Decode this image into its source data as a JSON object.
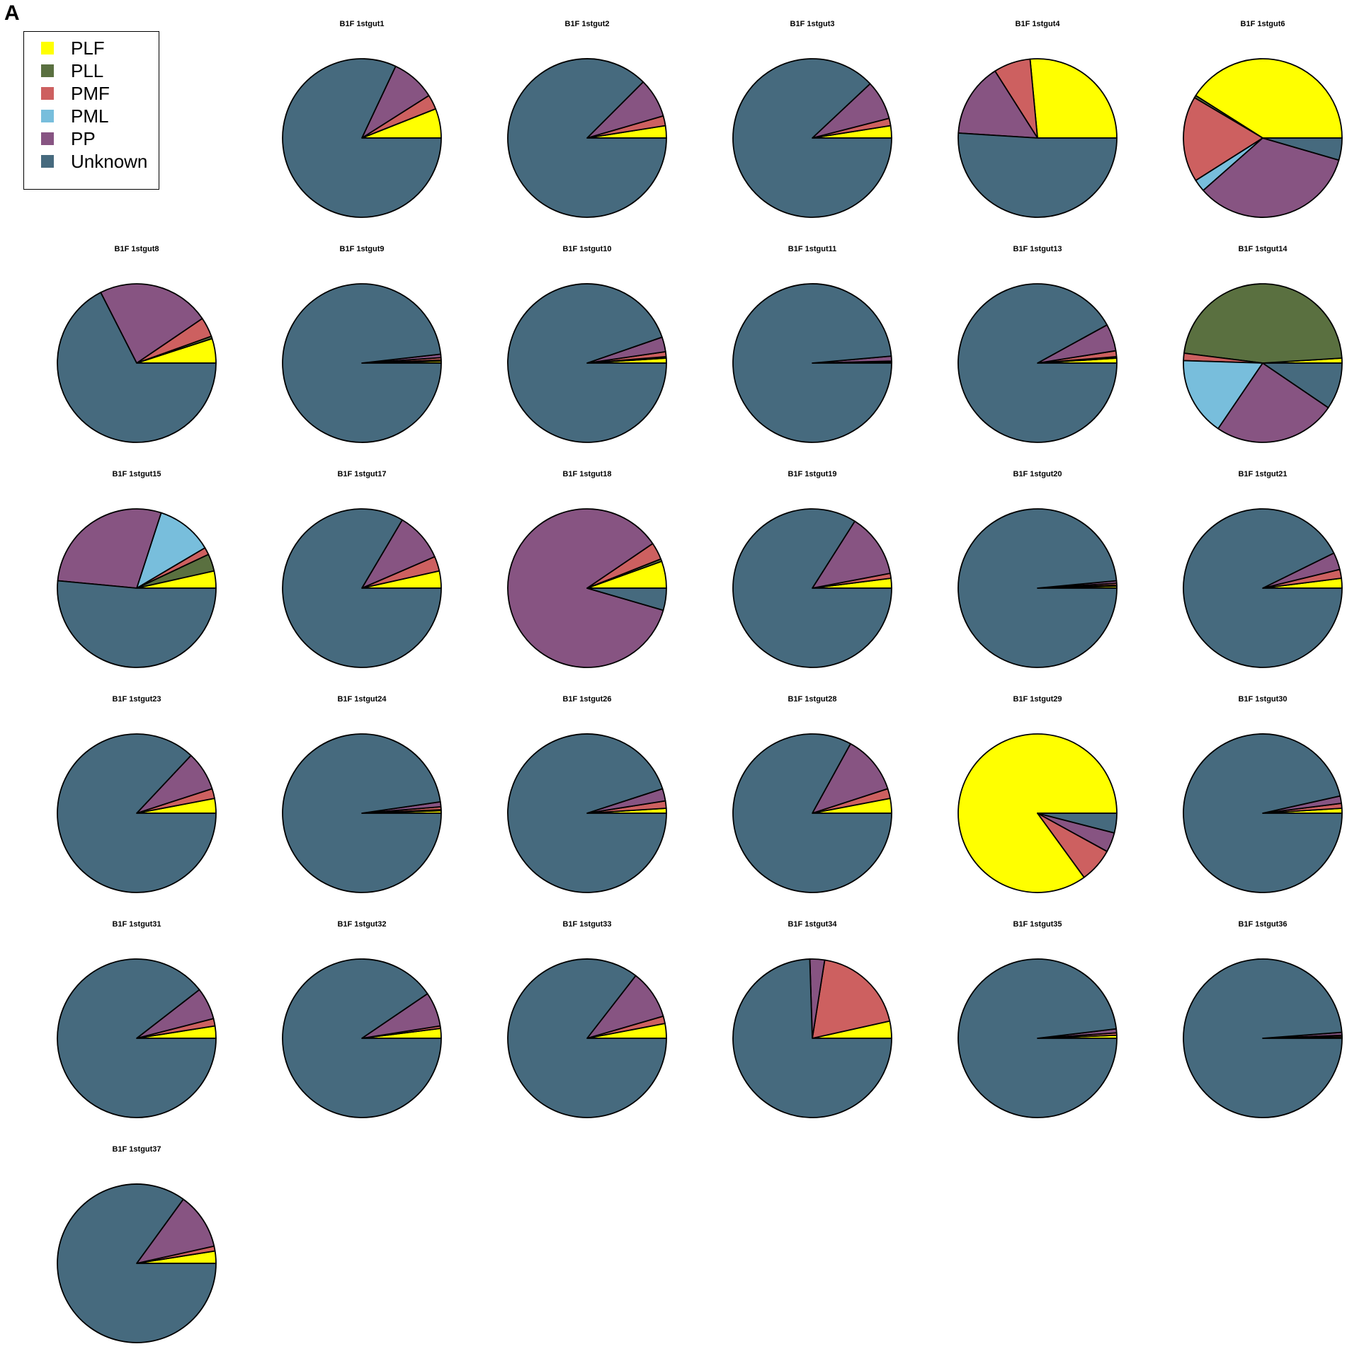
{
  "panel_label": "A",
  "colors": {
    "PLF": "#FFFF00",
    "PLL": "#5A7040",
    "PMF": "#CD6060",
    "PML": "#78BEDC",
    "PP": "#875482",
    "Unknown": "#466A7E"
  },
  "legend": {
    "placement": "top-left",
    "entries": [
      "PLF",
      "PLL",
      "PMF",
      "PML",
      "PP",
      "Unknown"
    ]
  },
  "chart_data": {
    "type": "pie",
    "categories": [
      "PLF",
      "PLL",
      "PMF",
      "PML",
      "PP",
      "Unknown"
    ],
    "pies": [
      {
        "title": "B1F 1stgut1",
        "values": [
          6,
          0,
          3,
          0,
          9,
          82
        ]
      },
      {
        "title": "B1F 1stgut2",
        "values": [
          2.5,
          0,
          2,
          0,
          8,
          87.5
        ]
      },
      {
        "title": "B1F 1stgut3",
        "values": [
          2.5,
          0,
          1.5,
          0,
          8,
          88
        ]
      },
      {
        "title": "B1F 1stgut4",
        "values": [
          26.5,
          0,
          7.5,
          0,
          15,
          51
        ]
      },
      {
        "title": "B1F 1stgut6",
        "values": [
          41,
          0.5,
          17.5,
          2.5,
          34,
          4.5
        ]
      },
      {
        "title": "B1F 1stgut8",
        "values": [
          5,
          0.5,
          4,
          0,
          23,
          67.5
        ]
      },
      {
        "title": "B1F 1stgut9",
        "values": [
          0.4,
          0.2,
          0.5,
          0,
          0.7,
          98.2
        ]
      },
      {
        "title": "B1F 1stgut10",
        "values": [
          1,
          0.3,
          1,
          0,
          3,
          94.7
        ]
      },
      {
        "title": "B1F 1stgut11",
        "values": [
          0.2,
          0,
          0.2,
          0,
          1,
          98.6
        ]
      },
      {
        "title": "B1F 1stgut13",
        "values": [
          1,
          0.3,
          1.2,
          0,
          5.5,
          92
        ]
      },
      {
        "title": "B1F 1stgut14",
        "values": [
          1,
          47,
          1.5,
          16,
          25,
          9.5
        ]
      },
      {
        "title": "B1F 1stgut15",
        "values": [
          3.5,
          3.5,
          1.5,
          11.5,
          28.5,
          51.5
        ]
      },
      {
        "title": "B1F 1stgut17",
        "values": [
          3.5,
          0,
          3,
          0,
          10,
          83.5
        ]
      },
      {
        "title": "B1F 1stgut18",
        "values": [
          5.5,
          0.5,
          3.5,
          0,
          86,
          4.5
        ]
      },
      {
        "title": "B1F 1stgut19",
        "values": [
          2,
          0,
          1,
          0,
          13,
          84
        ]
      },
      {
        "title": "B1F 1stgut20",
        "values": [
          0.4,
          0.2,
          0.4,
          0,
          0.5,
          98.5
        ]
      },
      {
        "title": "B1F 1stgut21",
        "values": [
          2,
          0,
          1.8,
          0,
          3.5,
          92.7
        ]
      },
      {
        "title": "B1F 1stgut23",
        "values": [
          3,
          0,
          2,
          0,
          8,
          87
        ]
      },
      {
        "title": "B1F 1stgut24",
        "values": [
          0.5,
          0.2,
          0.6,
          0,
          1,
          97.7
        ]
      },
      {
        "title": "B1F 1stgut26",
        "values": [
          1,
          0,
          1.5,
          0,
          2.5,
          95
        ]
      },
      {
        "title": "B1F 1stgut28",
        "values": [
          3,
          0,
          2,
          0,
          12,
          83
        ]
      },
      {
        "title": "B1F 1stgut29",
        "values": [
          85,
          0,
          7,
          0,
          4,
          4
        ]
      },
      {
        "title": "B1F 1stgut30",
        "values": [
          1,
          0,
          1,
          0,
          1.5,
          96.5
        ]
      },
      {
        "title": "B1F 1stgut31",
        "values": [
          2.5,
          0,
          1.5,
          0,
          6.5,
          89.5
        ]
      },
      {
        "title": "B1F 1stgut32",
        "values": [
          2,
          0,
          0.5,
          0,
          7,
          90.5
        ]
      },
      {
        "title": "B1F 1stgut33",
        "values": [
          3,
          0,
          1.5,
          0,
          10,
          85.5
        ]
      },
      {
        "title": "B1F 1stgut34",
        "values": [
          3.5,
          0,
          19,
          0,
          3,
          74.5
        ]
      },
      {
        "title": "B1F 1stgut35",
        "values": [
          0.6,
          0,
          0.5,
          0,
          0.8,
          98.1
        ]
      },
      {
        "title": "B1F 1stgut36",
        "values": [
          0.3,
          0,
          0.3,
          0,
          0.6,
          98.8
        ]
      },
      {
        "title": "B1F 1stgut37",
        "values": [
          2.5,
          0,
          1,
          0,
          11.5,
          85
        ]
      }
    ]
  }
}
